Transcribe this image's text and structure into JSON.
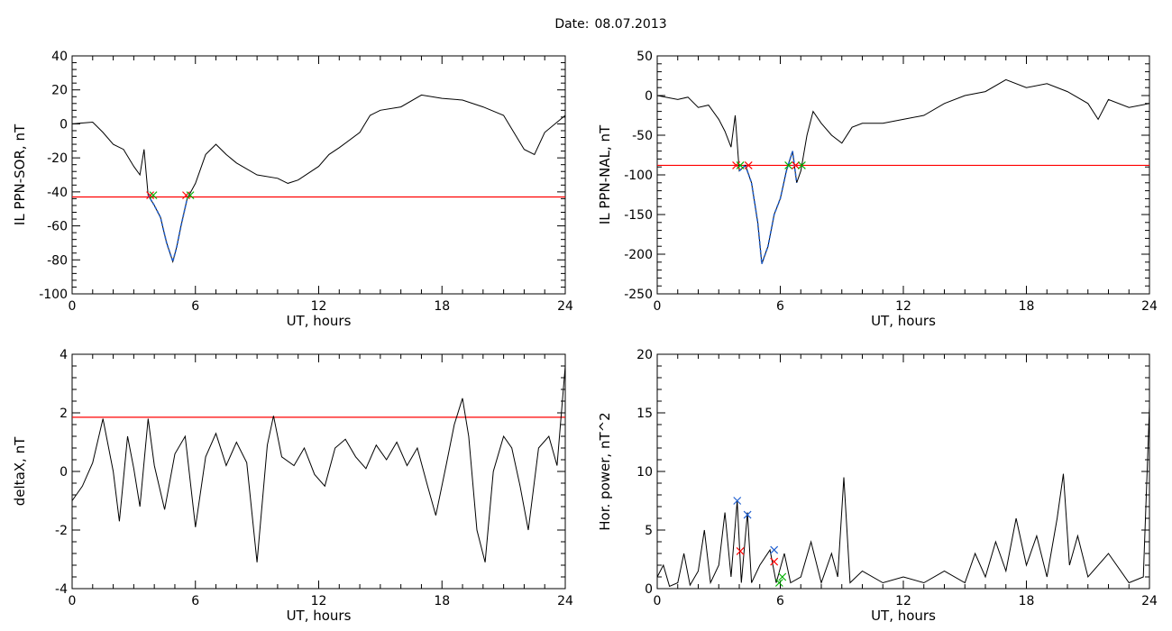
{
  "header": {
    "date_label": "Date:",
    "date_value": "08.07.2013"
  },
  "colors": {
    "trace": "#000000",
    "threshold": "#ff0000",
    "segment": "#1f5fd0",
    "marker_red": "#ff0000",
    "marker_green": "#00b000",
    "marker_blue": "#1f5fd0"
  },
  "chart_data": [
    {
      "type": "line",
      "xlabel": "UT, hours",
      "ylabel": "IL PPN-SOR, nT",
      "xlim": [
        0,
        24
      ],
      "ylim": [
        -100,
        40
      ],
      "xticks": [
        "0",
        "6",
        "12",
        "18",
        "24"
      ],
      "yticks": [
        "40",
        "20",
        "0",
        "-20",
        "-40",
        "-60",
        "-80",
        "-100"
      ],
      "threshold": -43,
      "series": [
        {
          "values": [
            [
              0,
              0
            ],
            [
              1,
              1
            ],
            [
              1.5,
              -5
            ],
            [
              2,
              -12
            ],
            [
              2.5,
              -15
            ],
            [
              3,
              -25
            ],
            [
              3.3,
              -30
            ],
            [
              3.5,
              -15
            ],
            [
              3.7,
              -42
            ],
            [
              4,
              -48
            ],
            [
              4.3,
              -55
            ],
            [
              4.6,
              -70
            ],
            [
              4.9,
              -81
            ],
            [
              5.1,
              -72
            ],
            [
              5.3,
              -60
            ],
            [
              5.6,
              -44
            ],
            [
              6,
              -35
            ],
            [
              6.5,
              -18
            ],
            [
              7,
              -12
            ],
            [
              7.5,
              -18
            ],
            [
              8,
              -23
            ],
            [
              9,
              -30
            ],
            [
              10,
              -32
            ],
            [
              10.5,
              -35
            ],
            [
              11,
              -33
            ],
            [
              12,
              -25
            ],
            [
              12.5,
              -18
            ],
            [
              13,
              -14
            ],
            [
              14,
              -5
            ],
            [
              14.5,
              5
            ],
            [
              15,
              8
            ],
            [
              16,
              10
            ],
            [
              17,
              17
            ],
            [
              18,
              15
            ],
            [
              19,
              14
            ],
            [
              20,
              10
            ],
            [
              21,
              5
            ],
            [
              21.5,
              -5
            ],
            [
              22,
              -15
            ],
            [
              22.5,
              -18
            ],
            [
              23,
              -5
            ],
            [
              24,
              5
            ]
          ]
        }
      ],
      "highlight_segments": [
        {
          "x_range": [
            3.7,
            5.6
          ]
        }
      ],
      "markers": [
        {
          "x": 3.8,
          "y": -42,
          "color": "red"
        },
        {
          "x": 3.95,
          "y": -42,
          "color": "green"
        },
        {
          "x": 5.55,
          "y": -42,
          "color": "red"
        },
        {
          "x": 5.75,
          "y": -42,
          "color": "green"
        }
      ]
    },
    {
      "type": "line",
      "xlabel": "UT, hours",
      "ylabel": "IL PPN-NAL, nT",
      "xlim": [
        0,
        24
      ],
      "ylim": [
        -250,
        50
      ],
      "xticks": [
        "0",
        "6",
        "12",
        "18",
        "24"
      ],
      "yticks": [
        "50",
        "0",
        "-50",
        "-100",
        "-150",
        "-200",
        "-250"
      ],
      "threshold": -88,
      "series": [
        {
          "values": [
            [
              0,
              0
            ],
            [
              1,
              -5
            ],
            [
              1.5,
              -2
            ],
            [
              2,
              -15
            ],
            [
              2.5,
              -12
            ],
            [
              3,
              -30
            ],
            [
              3.3,
              -45
            ],
            [
              3.6,
              -65
            ],
            [
              3.8,
              -25
            ],
            [
              4,
              -95
            ],
            [
              4.3,
              -88
            ],
            [
              4.6,
              -110
            ],
            [
              4.9,
              -160
            ],
            [
              5.1,
              -212
            ],
            [
              5.4,
              -190
            ],
            [
              5.7,
              -150
            ],
            [
              6,
              -130
            ],
            [
              6.3,
              -95
            ],
            [
              6.6,
              -70
            ],
            [
              6.8,
              -110
            ],
            [
              7,
              -95
            ],
            [
              7.3,
              -50
            ],
            [
              7.6,
              -20
            ],
            [
              8,
              -35
            ],
            [
              8.5,
              -50
            ],
            [
              9,
              -60
            ],
            [
              9.5,
              -40
            ],
            [
              10,
              -35
            ],
            [
              11,
              -35
            ],
            [
              12,
              -30
            ],
            [
              13,
              -25
            ],
            [
              14,
              -10
            ],
            [
              15,
              0
            ],
            [
              16,
              5
            ],
            [
              17,
              20
            ],
            [
              18,
              10
            ],
            [
              19,
              15
            ],
            [
              20,
              5
            ],
            [
              21,
              -10
            ],
            [
              21.5,
              -30
            ],
            [
              22,
              -5
            ],
            [
              23,
              -15
            ],
            [
              24,
              -10
            ]
          ]
        }
      ],
      "highlight_segments": [
        {
          "x_range": [
            4.0,
            6.9
          ]
        }
      ],
      "markers": [
        {
          "x": 3.85,
          "y": -88,
          "color": "red"
        },
        {
          "x": 4.05,
          "y": -88,
          "color": "green"
        },
        {
          "x": 4.45,
          "y": -88,
          "color": "red"
        },
        {
          "x": 6.4,
          "y": -88,
          "color": "green"
        },
        {
          "x": 6.75,
          "y": -88,
          "color": "red"
        },
        {
          "x": 7.05,
          "y": -88,
          "color": "green"
        }
      ]
    },
    {
      "type": "line",
      "xlabel": "UT, hours",
      "ylabel": "deltaX, nT",
      "xlim": [
        0,
        24
      ],
      "ylim": [
        -4,
        4
      ],
      "xticks": [
        "0",
        "6",
        "12",
        "18",
        "24"
      ],
      "yticks": [
        "4",
        "2",
        "0",
        "-2",
        "-4"
      ],
      "threshold": 1.85,
      "series": [
        {
          "values": [
            [
              0,
              -1
            ],
            [
              0.5,
              -0.5
            ],
            [
              1,
              0.3
            ],
            [
              1.5,
              1.8
            ],
            [
              2,
              0
            ],
            [
              2.3,
              -1.7
            ],
            [
              2.7,
              1.2
            ],
            [
              3,
              0.1
            ],
            [
              3.3,
              -1.2
            ],
            [
              3.7,
              1.8
            ],
            [
              4,
              0.2
            ],
            [
              4.5,
              -1.3
            ],
            [
              5,
              0.6
            ],
            [
              5.5,
              1.2
            ],
            [
              6,
              -1.9
            ],
            [
              6.5,
              0.5
            ],
            [
              7,
              1.3
            ],
            [
              7.5,
              0.2
            ],
            [
              8,
              1.0
            ],
            [
              8.5,
              0.3
            ],
            [
              9,
              -3.1
            ],
            [
              9.5,
              0.9
            ],
            [
              9.8,
              1.9
            ],
            [
              10.2,
              0.5
            ],
            [
              10.8,
              0.2
            ],
            [
              11.3,
              0.8
            ],
            [
              11.8,
              -0.1
            ],
            [
              12.3,
              -0.5
            ],
            [
              12.8,
              0.8
            ],
            [
              13.3,
              1.1
            ],
            [
              13.8,
              0.5
            ],
            [
              14.3,
              0.1
            ],
            [
              14.8,
              0.9
            ],
            [
              15.3,
              0.4
            ],
            [
              15.8,
              1.0
            ],
            [
              16.3,
              0.2
            ],
            [
              16.8,
              0.8
            ],
            [
              17.3,
              -0.5
            ],
            [
              17.7,
              -1.5
            ],
            [
              18.2,
              0.2
            ],
            [
              18.6,
              1.6
            ],
            [
              19,
              2.5
            ],
            [
              19.3,
              1.2
            ],
            [
              19.7,
              -2.0
            ],
            [
              20.1,
              -3.1
            ],
            [
              20.5,
              0
            ],
            [
              21,
              1.2
            ],
            [
              21.4,
              0.8
            ],
            [
              21.8,
              -0.5
            ],
            [
              22.2,
              -2.0
            ],
            [
              22.7,
              0.8
            ],
            [
              23.2,
              1.2
            ],
            [
              23.6,
              0.2
            ],
            [
              24,
              3.6
            ]
          ]
        }
      ]
    },
    {
      "type": "line",
      "xlabel": "UT, hours",
      "ylabel": "Hor. power, nT^2",
      "xlim": [
        0,
        24
      ],
      "ylim": [
        0,
        20
      ],
      "xticks": [
        "0",
        "6",
        "12",
        "18",
        "24"
      ],
      "yticks": [
        "20",
        "15",
        "10",
        "5",
        "0"
      ],
      "series": [
        {
          "values": [
            [
              0,
              1
            ],
            [
              0.3,
              2
            ],
            [
              0.6,
              0.2
            ],
            [
              1,
              0.5
            ],
            [
              1.3,
              3
            ],
            [
              1.6,
              0.3
            ],
            [
              2,
              1.5
            ],
            [
              2.3,
              5
            ],
            [
              2.6,
              0.5
            ],
            [
              3,
              2
            ],
            [
              3.3,
              6.5
            ],
            [
              3.6,
              1
            ],
            [
              3.9,
              7.5
            ],
            [
              4.1,
              0.5
            ],
            [
              4.4,
              6.5
            ],
            [
              4.6,
              0.5
            ],
            [
              5,
              2
            ],
            [
              5.5,
              3.3
            ],
            [
              5.8,
              0.5
            ],
            [
              6.2,
              3
            ],
            [
              6.5,
              0.5
            ],
            [
              7,
              1
            ],
            [
              7.5,
              4
            ],
            [
              8,
              0.5
            ],
            [
              8.5,
              3
            ],
            [
              8.8,
              1
            ],
            [
              9.1,
              9.5
            ],
            [
              9.4,
              0.5
            ],
            [
              10,
              1.5
            ],
            [
              11,
              0.5
            ],
            [
              12,
              1
            ],
            [
              13,
              0.5
            ],
            [
              14,
              1.5
            ],
            [
              15,
              0.5
            ],
            [
              15.5,
              3
            ],
            [
              16,
              1
            ],
            [
              16.5,
              4
            ],
            [
              17,
              1.5
            ],
            [
              17.5,
              6
            ],
            [
              18,
              2
            ],
            [
              18.5,
              4.5
            ],
            [
              19,
              1
            ],
            [
              19.5,
              6
            ],
            [
              19.8,
              9.8
            ],
            [
              20.1,
              2
            ],
            [
              20.5,
              4.5
            ],
            [
              21,
              1
            ],
            [
              22,
              3
            ],
            [
              23,
              0.5
            ],
            [
              23.7,
              1
            ],
            [
              24,
              15.5
            ]
          ]
        }
      ],
      "markers": [
        {
          "x": 3.9,
          "y": 7.5,
          "color": "blue"
        },
        {
          "x": 4.05,
          "y": 3.2,
          "color": "red"
        },
        {
          "x": 4.4,
          "y": 6.3,
          "color": "blue"
        },
        {
          "x": 5.7,
          "y": 3.3,
          "color": "blue"
        },
        {
          "x": 5.7,
          "y": 2.3,
          "color": "red"
        },
        {
          "x": 5.95,
          "y": 0.5,
          "color": "green"
        },
        {
          "x": 6.1,
          "y": 1.0,
          "color": "green"
        }
      ]
    }
  ]
}
